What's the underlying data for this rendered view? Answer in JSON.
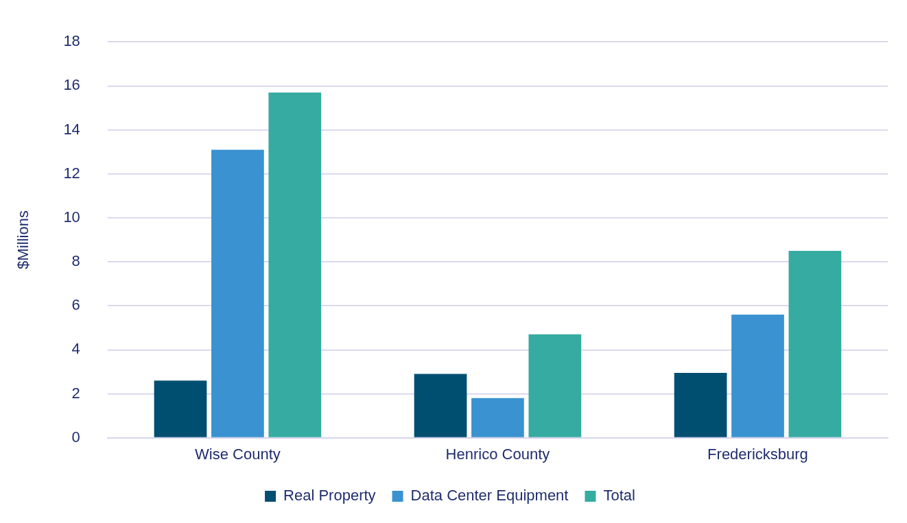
{
  "chart_data": {
    "type": "bar",
    "ylabel": "$Millions",
    "categories": [
      "Wise County",
      "Henrico County",
      "Fredericksburg"
    ],
    "series": [
      {
        "name": "Real Property",
        "color": "#004f71",
        "values": [
          2.6,
          2.9,
          2.95
        ]
      },
      {
        "name": "Data Center Equipment",
        "color": "#3a92d0",
        "values": [
          13.1,
          1.8,
          5.6
        ]
      },
      {
        "name": "Total",
        "color": "#36aba1",
        "values": [
          15.7,
          4.7,
          8.5
        ]
      }
    ],
    "ylim": [
      0,
      18
    ],
    "yticks": [
      0,
      2,
      4,
      6,
      8,
      10,
      12,
      14,
      16,
      18
    ],
    "grid": "y",
    "legend": "bottom"
  }
}
